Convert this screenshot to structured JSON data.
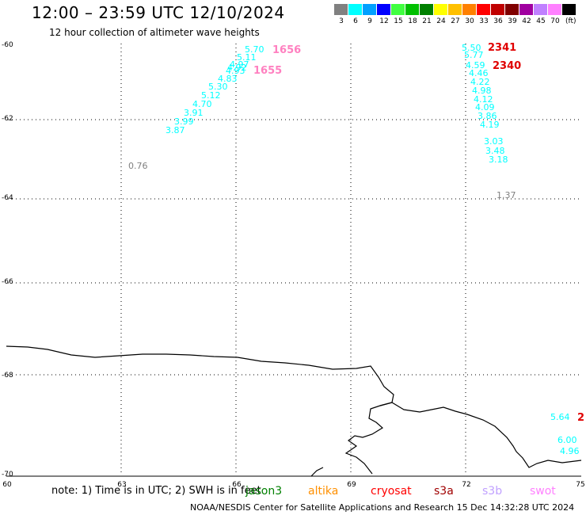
{
  "header": {
    "title": "12:00 – 23:59 UTC 12/10/2024",
    "subtitle": "12 hour collection of altimeter wave heights"
  },
  "legend": {
    "unit": "(ft)",
    "items": [
      {
        "label": "3",
        "color": "#808080"
      },
      {
        "label": "6",
        "color": "#00ffff"
      },
      {
        "label": "9",
        "color": "#00a0ff"
      },
      {
        "label": "12",
        "color": "#0000ff"
      },
      {
        "label": "15",
        "color": "#40ff40"
      },
      {
        "label": "18",
        "color": "#00c000"
      },
      {
        "label": "21",
        "color": "#008000"
      },
      {
        "label": "24",
        "color": "#ffff00"
      },
      {
        "label": "27",
        "color": "#ffc000"
      },
      {
        "label": "30",
        "color": "#ff8000"
      },
      {
        "label": "33",
        "color": "#ff0000"
      },
      {
        "label": "36",
        "color": "#c00000"
      },
      {
        "label": "39",
        "color": "#800000"
      },
      {
        "label": "42",
        "color": "#a000a0"
      },
      {
        "label": "45",
        "color": "#c080ff"
      },
      {
        "label": "70",
        "color": "#ff80ff"
      },
      {
        "label": "",
        "color": "#000000"
      }
    ]
  },
  "axes": {
    "lat_labels": [
      "-60",
      "-62",
      "-64",
      "-66",
      "-68",
      "-70"
    ],
    "lon_labels": [
      "60",
      "63",
      "66",
      "69",
      "72",
      "75"
    ]
  },
  "tracks": [
    {
      "values": [
        "5.70",
        "5.11",
        "4.97",
        "4.92",
        "4.93",
        "4.83",
        "5.30",
        "5.12",
        "4.70",
        "3.91",
        "3.99",
        "3.87"
      ],
      "color": "#00ffff"
    },
    {
      "values": [
        "0.76"
      ],
      "color": "#808080"
    },
    {
      "values": [
        "5.50",
        "5.77",
        "4.59",
        "4.46",
        "4.22",
        "4.98",
        "4.12",
        "4.09",
        "3.86",
        "4.19",
        "3.03",
        "3.48",
        "3.18"
      ],
      "color": "#00ffff"
    },
    {
      "values": [
        "1.37"
      ],
      "color": "#808080"
    },
    {
      "values": [
        "5.64",
        "6.00",
        "4.96"
      ],
      "color": "#00ffff"
    }
  ],
  "time_labels": [
    {
      "text": "1656",
      "color": "#ff80c0"
    },
    {
      "text": "1655",
      "color": "#ff80c0"
    },
    {
      "text": "2341",
      "color": "#e00000"
    },
    {
      "text": "2340",
      "color": "#e00000"
    },
    {
      "text": "2",
      "color": "#e00000"
    }
  ],
  "footer": {
    "note": "note: 1) Time is in UTC; 2) SWH is in feet",
    "satellites": [
      {
        "name": "jason3",
        "color": "#008000"
      },
      {
        "name": "altika",
        "color": "#ff9000"
      },
      {
        "name": "cryosat",
        "color": "#ff0000"
      },
      {
        "name": "s3a",
        "color": "#a00000"
      },
      {
        "name": "s3b",
        "color": "#c0a0ff"
      },
      {
        "name": "swot",
        "color": "#ff80ff"
      }
    ],
    "credit": "NOAA/NESDIS Center for Satellite Applications and Research    15 Dec 14:32:28 UTC 2024"
  }
}
